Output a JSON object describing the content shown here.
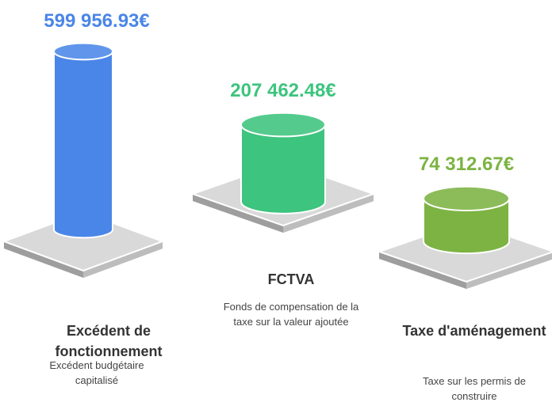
{
  "chart_data": {
    "type": "cylinder",
    "categories": [
      "Excédent de fonctionnement",
      "FCTVA",
      "Taxe d'aménagement"
    ],
    "descriptions": [
      "Excédent budgétaire capitalisé",
      "Fonds de compensation de la taxe sur la valeur ajoutée",
      "Taxe sur les permis de construire"
    ],
    "values": [
      599956.93,
      207462.48,
      74312.67
    ],
    "value_labels": [
      "599 956.93€",
      "207 462.48€",
      "74 312.67€"
    ],
    "colors": [
      "#4a86e8",
      "#3dc47e",
      "#7cb342"
    ]
  }
}
